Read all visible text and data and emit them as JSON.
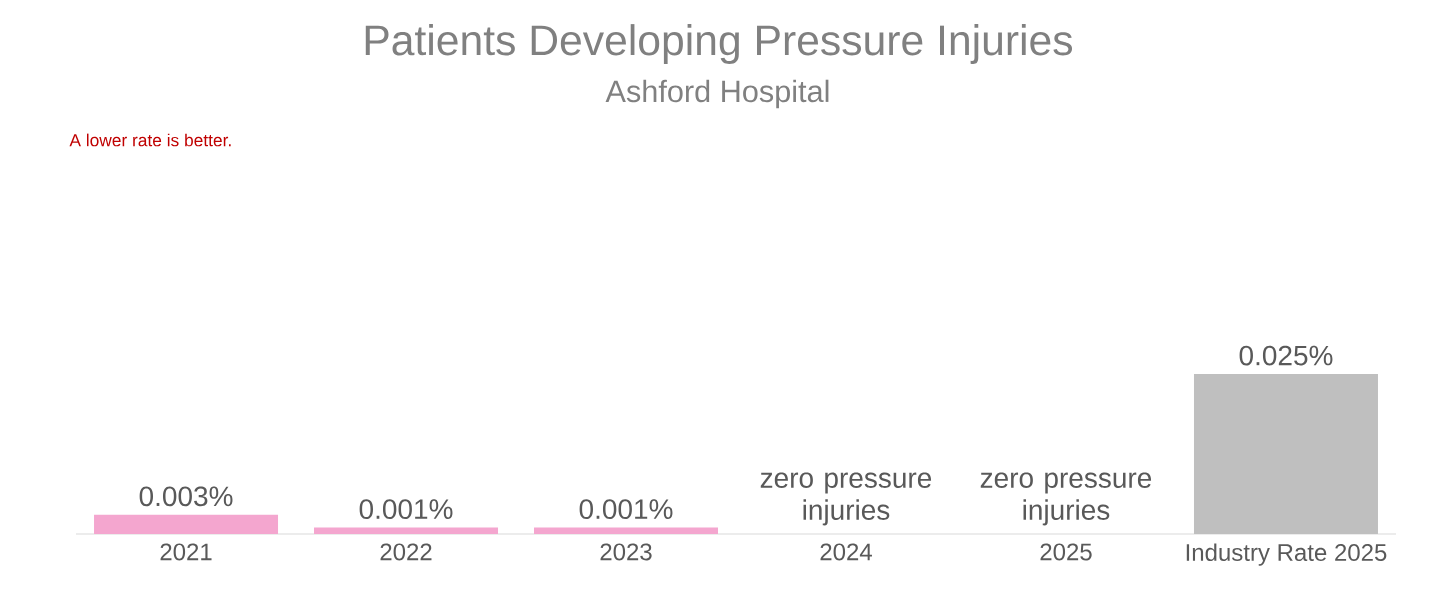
{
  "chart_data": {
    "type": "bar",
    "title": "Patients Developing Pressure Injuries",
    "subtitle": "Ashford Hospital",
    "annotations": [
      "A lower rate is better."
    ],
    "categories": [
      "2021",
      "2022",
      "2023",
      "2024",
      "2025",
      "Industry Rate 2025"
    ],
    "values": [
      0.003,
      0.001,
      0.001,
      0,
      0,
      0.025
    ],
    "colors": [
      "#f4a6cf",
      "#f4a6cf",
      "#f4a6cf",
      "#f4a6cf",
      "#f4a6cf",
      "#bfbfbf"
    ],
    "value_labels": [
      "0.003%",
      "0.001%",
      "0.001%",
      "zero pressure injuries",
      "zero pressure injuries",
      "0.025%"
    ]
  }
}
